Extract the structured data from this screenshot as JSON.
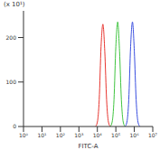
{
  "chart_data": {
    "type": "line",
    "x_label": "FITC-A",
    "annotation": "(x 10¹)",
    "log": "x",
    "grid": false,
    "xlim": [
      1,
      10000000
    ],
    "xticks": [
      {
        "value": 1,
        "label": "10⁰"
      },
      {
        "value": 10,
        "label": "10¹"
      },
      {
        "value": 100,
        "label": "10²"
      },
      {
        "value": 1000,
        "label": "10³"
      },
      {
        "value": 10000,
        "label": "10⁴"
      },
      {
        "value": 100000,
        "label": "10⁵"
      },
      {
        "value": 1000000,
        "label": "10⁶"
      },
      {
        "value": 10000000,
        "label": "10⁷"
      }
    ],
    "ylim": [
      0,
      260
    ],
    "yticks": [
      0,
      100,
      200
    ],
    "series": [
      {
        "color": "#e8352f",
        "x": [
          7943,
          10000,
          12589,
          15849,
          19953,
          25119,
          31623,
          39811,
          50119
        ],
        "values": [
          0,
          10,
          60,
          180,
          230,
          170,
          60,
          10,
          0
        ]
      },
      {
        "color": "#3fc43f",
        "x": [
          50119,
          63096,
          79433,
          100000,
          125893,
          158489,
          199526,
          251189,
          316228
        ],
        "values": [
          0,
          10,
          60,
          180,
          235,
          170,
          60,
          10,
          0
        ]
      },
      {
        "color": "#3a4fe0",
        "x": [
          316228,
          398107,
          501187,
          630957,
          794328,
          1000000,
          1258925,
          1584893,
          1995262
        ],
        "values": [
          0,
          10,
          60,
          180,
          235,
          170,
          60,
          10,
          0
        ]
      }
    ]
  }
}
